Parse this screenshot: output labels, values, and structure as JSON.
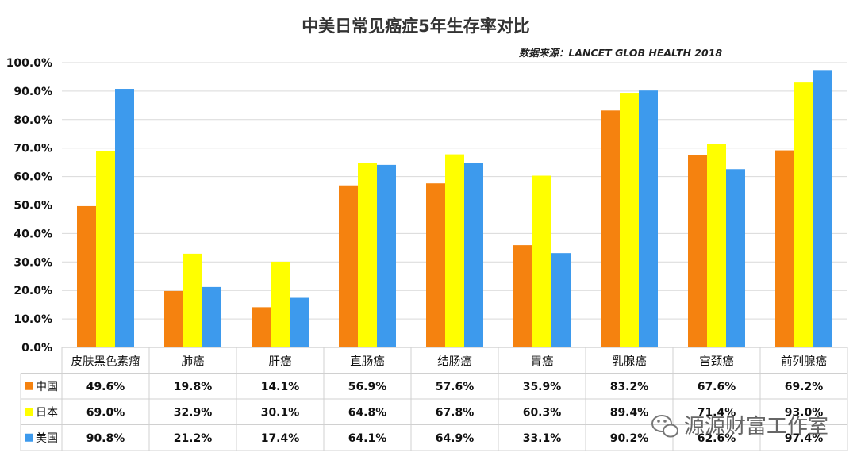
{
  "chart_data": {
    "type": "bar",
    "title": "中美日常见癌症5年生存率对比",
    "source": "数据来源：LANCET GLOB HEALTH 2018",
    "categories": [
      "皮肤黑色素瘤",
      "肺癌",
      "肝癌",
      "直肠癌",
      "结肠癌",
      "胃癌",
      "乳腺癌",
      "宫颈癌",
      "前列腺癌"
    ],
    "ylim": [
      0,
      100
    ],
    "yticks": [
      "0.0%",
      "10.0%",
      "20.0%",
      "30.0%",
      "40.0%",
      "50.0%",
      "60.0%",
      "70.0%",
      "80.0%",
      "90.0%",
      "100.0%"
    ],
    "grid": true,
    "legend": "data-table",
    "series": [
      {
        "name": "中国",
        "color": "#F5820F",
        "values": [
          49.6,
          19.8,
          14.1,
          56.9,
          57.6,
          35.9,
          83.2,
          67.6,
          69.2
        ],
        "labels": [
          "49.6%",
          "19.8%",
          "14.1%",
          "56.9%",
          "57.6%",
          "35.9%",
          "83.2%",
          "67.6%",
          "69.2%"
        ]
      },
      {
        "name": "日本",
        "color": "#FFFF00",
        "values": [
          69.0,
          32.9,
          30.1,
          64.8,
          67.8,
          60.3,
          89.4,
          71.4,
          93.0
        ],
        "labels": [
          "69.0%",
          "32.9%",
          "30.1%",
          "64.8%",
          "67.8%",
          "60.3%",
          "89.4%",
          "71.4%",
          "93.0%"
        ]
      },
      {
        "name": "美国",
        "color": "#3D9AED",
        "values": [
          90.8,
          21.2,
          17.4,
          64.1,
          64.9,
          33.1,
          90.2,
          62.6,
          97.4
        ],
        "labels": [
          "90.8%",
          "21.2%",
          "17.4%",
          "64.1%",
          "64.9%",
          "33.1%",
          "90.2%",
          "62.6%",
          "97.4%"
        ]
      }
    ]
  },
  "watermark": {
    "text": "源源财富工作室",
    "icon": "wechat-icon"
  }
}
